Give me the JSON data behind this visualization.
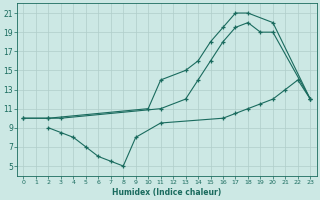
{
  "xlabel": "Humidex (Indice chaleur)",
  "bg_color": "#cce8e4",
  "grid_color": "#b0ceca",
  "line_color": "#1a6b5e",
  "xlim": [
    -0.5,
    23.5
  ],
  "ylim": [
    4,
    22
  ],
  "xticks": [
    0,
    1,
    2,
    3,
    4,
    5,
    6,
    7,
    8,
    9,
    10,
    11,
    12,
    13,
    14,
    15,
    16,
    17,
    18,
    19,
    20,
    21,
    22,
    23
  ],
  "yticks": [
    5,
    7,
    9,
    11,
    13,
    15,
    17,
    19,
    21
  ],
  "line1_x": [
    0,
    2,
    10,
    11,
    13,
    14,
    15,
    16,
    17,
    18,
    20,
    23
  ],
  "line1_y": [
    10,
    10,
    11,
    14,
    15,
    16,
    18,
    19.5,
    21,
    21,
    20,
    12
  ],
  "line2_x": [
    0,
    2,
    3,
    11,
    13,
    14,
    15,
    16,
    17,
    18,
    19,
    20,
    23
  ],
  "line2_y": [
    10,
    10,
    10,
    11,
    12,
    14,
    16,
    18,
    19.5,
    20,
    19,
    19,
    12
  ],
  "line3_x": [
    2,
    3,
    4,
    5,
    6,
    7,
    8,
    9,
    11,
    16,
    17,
    18,
    19,
    20,
    21,
    22,
    23
  ],
  "line3_y": [
    9,
    8.5,
    8,
    7,
    6,
    5.5,
    5,
    8,
    9.5,
    10,
    10.5,
    11,
    11.5,
    12,
    13,
    14,
    12
  ]
}
